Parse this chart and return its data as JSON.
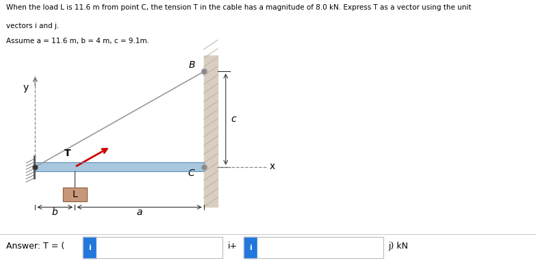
{
  "title_line1": "When the load L is 11.6 m from point C, the tension T in the cable has a magnitude of 8.0 kN. Express T as a vector using the unit",
  "title_line2": "vectors i and j.",
  "title_line3": "Assume a = 11.6 m, b = 4 m, c = 9.1m.",
  "answer_label": "Answer: T = (",
  "answer_i_plus": "i+",
  "answer_j_kn": "j) kN",
  "label_B": "B",
  "label_C": "C",
  "label_T": "T",
  "label_L": "L",
  "label_y": "y",
  "label_x": "x",
  "label_b": "b",
  "label_a": "a",
  "label_c": "c",
  "bg_color": "#ffffff",
  "beam_color": "#a8c8e0",
  "wall_color": "#d8cfc0",
  "box_color": "#c8987a",
  "cable_color": "#999999",
  "tension_color": "#cc0000",
  "input_box_color": "#2277dd",
  "text_color": "#000000",
  "pin_color": "#444444",
  "dim_color": "#333333"
}
